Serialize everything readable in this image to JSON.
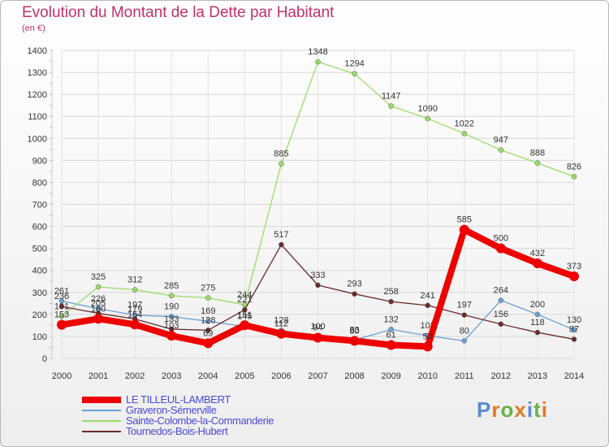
{
  "page": {
    "title": "Evolution du Montant de la Dette par Habitant",
    "unit_label": "(en €)",
    "brand": "Proxiti"
  },
  "chart_data": {
    "type": "line",
    "title": "Evolution du Montant de la Dette par Habitant",
    "ylabel": "(en €)",
    "xlabel": "",
    "grid": true,
    "ylim": [
      0,
      1400
    ],
    "yticks": [
      0,
      100,
      200,
      300,
      400,
      500,
      600,
      700,
      800,
      900,
      1000,
      1100,
      1200,
      1300,
      1400
    ],
    "x": [
      "2000",
      "2001",
      "2002",
      "2003",
      "2004",
      "2005",
      "2006",
      "2007",
      "2008",
      "2009",
      "2010",
      "2011",
      "2012",
      "2013",
      "2014"
    ],
    "legend_position": "bottom-left",
    "series": [
      {
        "name": "Graveron-Sémerville",
        "color": "#6aa3d6",
        "values": [
          261,
          226,
          197,
          190,
          169,
          145,
          128,
          100,
          83,
          132,
          103,
          80,
          264,
          200,
          130
        ]
      },
      {
        "name": "Sainte-Colombe-la-Commanderie",
        "color": "#99dd66",
        "values": [
          191,
          325,
          312,
          285,
          275,
          244,
          885,
          1348,
          1294,
          1147,
          1090,
          1022,
          947,
          888,
          826
        ]
      },
      {
        "name": "Tournedos-Bois-Hubert",
        "color": "#6b2a2a",
        "values": [
          236,
          205,
          179,
          133,
          128,
          221,
          517,
          333,
          293,
          258,
          241,
          197,
          156,
          118,
          87
        ]
      },
      {
        "name": "LE TILLEUL-LAMBERT",
        "color": "#ee0000",
        "values": [
          153,
          180,
          154,
          103,
          69,
          151,
          112,
          94,
          80,
          61,
          54,
          585,
          500,
          432,
          373
        ]
      }
    ],
    "legend_order": [
      "LE TILLEUL-LAMBERT",
      "Graveron-Sémerville",
      "Sainte-Colombe-la-Commanderie",
      "Tournedos-Bois-Hubert"
    ]
  }
}
